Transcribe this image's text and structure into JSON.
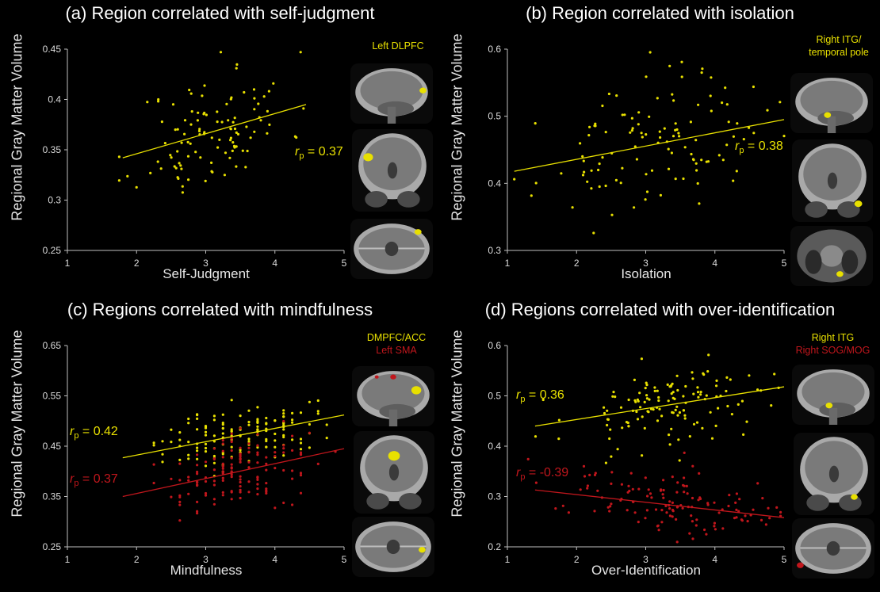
{
  "panels": [
    {
      "id": "a",
      "title": "(a) Region correlated with self-judgment",
      "xlabel": "Self-Judgment",
      "ylabel": "Regional Gray Matter Volume",
      "regions": [
        {
          "label": "Left DLPFC",
          "color": "#e8e000"
        }
      ],
      "rp": [
        "0.37"
      ]
    },
    {
      "id": "b",
      "title": "(b) Region correlated with isolation",
      "xlabel": "Isolation",
      "ylabel": "Regional Gray Matter Volume",
      "regions": [
        {
          "label": "Right ITG/",
          "color": "#e8e000"
        },
        {
          "label": "temporal pole",
          "color": "#e8e000"
        }
      ],
      "rp": [
        "0.38"
      ]
    },
    {
      "id": "c",
      "title": "(c) Regions correlated with mindfulness",
      "xlabel": "Mindfulness",
      "ylabel": "Regional Gray Matter Volume",
      "regions": [
        {
          "label": "DMPFC/ACC",
          "color": "#e8e000"
        },
        {
          "label": "Left SMA",
          "color": "#c0161c"
        }
      ],
      "rp": [
        "0.42",
        "0.37"
      ]
    },
    {
      "id": "d",
      "title": "(d) Regions correlated with over-identification",
      "xlabel": "Over-Identification",
      "ylabel": "Regional Gray Matter Volume",
      "regions": [
        {
          "label": "Right ITG",
          "color": "#e8e000"
        },
        {
          "label": "Right SOG/MOG",
          "color": "#c0161c"
        }
      ],
      "rp": [
        "0.36",
        "-0.39"
      ]
    }
  ],
  "chart_data": [
    {
      "type": "scatter",
      "title": "(a) Region correlated with self-judgment",
      "xlabel": "Self-Judgment",
      "ylabel": "Regional Gray Matter Volume",
      "xlim": [
        1,
        5
      ],
      "ylim": [
        0.25,
        0.45
      ],
      "xticks": [
        "1",
        "2",
        "3",
        "4",
        "5"
      ],
      "yticks": [
        "0.25",
        "0.3",
        "0.35",
        "0.4",
        "0.45"
      ],
      "series": [
        {
          "color": "#e8e000",
          "fit": [
            [
              1.8,
              0.342
            ],
            [
              4.45,
              0.395
            ]
          ],
          "n": 110,
          "mean_x": 3.1,
          "sd_x": 0.55,
          "sd_y": 0.03,
          "seed": 11,
          "xmin": 1.75,
          "xmax": 4.5
        }
      ]
    },
    {
      "type": "scatter",
      "title": "(b) Region correlated with isolation",
      "xlabel": "Isolation",
      "ylabel": "Regional Gray Matter Volume",
      "xlim": [
        1,
        5
      ],
      "ylim": [
        0.3,
        0.6
      ],
      "xticks": [
        "1",
        "2",
        "3",
        "4",
        "5"
      ],
      "yticks": [
        "0.3",
        "0.4",
        "0.5",
        "0.6"
      ],
      "series": [
        {
          "color": "#e8e000",
          "fit": [
            [
              1.1,
              0.418
            ],
            [
              5.0,
              0.495
            ]
          ],
          "n": 115,
          "mean_x": 3.1,
          "sd_x": 0.8,
          "sd_y": 0.045,
          "seed": 23,
          "xmin": 1.1,
          "xmax": 5.0
        }
      ]
    },
    {
      "type": "scatter",
      "title": "(c) Regions correlated with mindfulness",
      "xlabel": "Mindfulness",
      "ylabel": "Regional Gray Matter Volume",
      "xlim": [
        1,
        5
      ],
      "ylim": [
        0.25,
        0.65
      ],
      "xticks": [
        "1",
        "2",
        "3",
        "4",
        "5"
      ],
      "yticks": [
        "0.25",
        "0.35",
        "0.45",
        "0.55",
        "0.65"
      ],
      "series": [
        {
          "color": "#e8e000",
          "fit": [
            [
              1.8,
              0.427
            ],
            [
              5.0,
              0.512
            ]
          ],
          "n": 140,
          "mean_x": 3.5,
          "sd_x": 0.55,
          "sd_y": 0.03,
          "seed": 37,
          "xmin": 1.75,
          "xmax": 4.85,
          "discrete": true
        },
        {
          "color": "#c0161c",
          "fit": [
            [
              1.8,
              0.35
            ],
            [
              5.0,
              0.445
            ]
          ],
          "n": 140,
          "mean_x": 3.5,
          "sd_x": 0.55,
          "sd_y": 0.035,
          "seed": 41,
          "xmin": 1.75,
          "xmax": 4.95,
          "discrete": true
        }
      ]
    },
    {
      "type": "scatter",
      "title": "(d) Regions correlated with over-identification",
      "xlabel": "Over-Identification",
      "ylabel": "Regional Gray Matter Volume",
      "xlim": [
        1,
        5
      ],
      "ylim": [
        0.2,
        0.6
      ],
      "xticks": [
        "1",
        "2",
        "3",
        "4",
        "5"
      ],
      "yticks": [
        "0.2",
        "0.3",
        "0.4",
        "0.5",
        "0.6"
      ],
      "series": [
        {
          "color": "#e8e000",
          "fit": [
            [
              1.4,
              0.44
            ],
            [
              5.0,
              0.518
            ]
          ],
          "n": 130,
          "mean_x": 3.4,
          "sd_x": 0.75,
          "sd_y": 0.04,
          "seed": 53,
          "xmin": 1.3,
          "xmax": 4.95
        },
        {
          "color": "#c0161c",
          "fit": [
            [
              1.4,
              0.313
            ],
            [
              5.0,
              0.258
            ]
          ],
          "n": 130,
          "mean_x": 3.4,
          "sd_x": 0.8,
          "sd_y": 0.028,
          "seed": 59,
          "xmin": 1.3,
          "xmax": 4.95
        }
      ]
    }
  ]
}
